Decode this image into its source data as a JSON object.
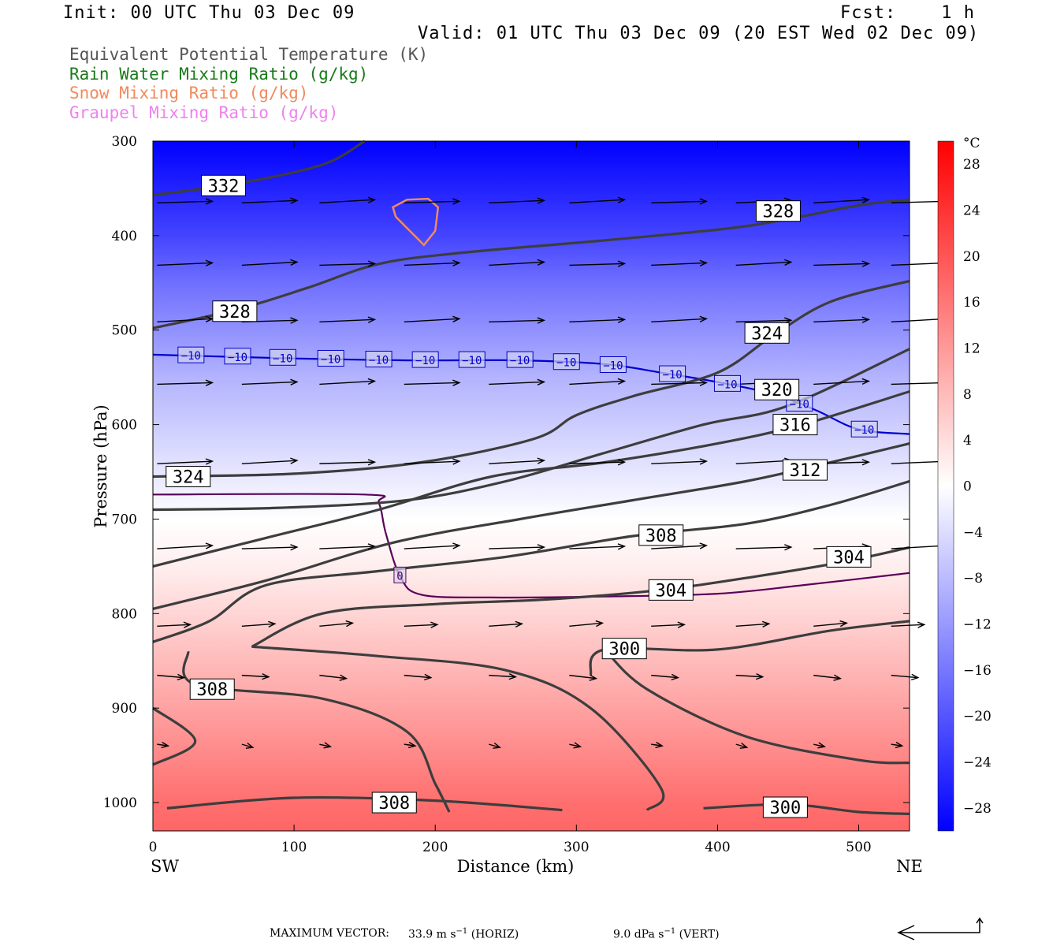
{
  "header": {
    "init": "Init: 00 UTC Thu 03 Dec 09",
    "fcst": "Fcst:    1 h",
    "valid": "Valid: 01 UTC Thu 03 Dec 09 (20 EST Wed 02 Dec 09)"
  },
  "legend": [
    {
      "label": "Equivalent Potential Temperature (K)",
      "color": "#555555"
    },
    {
      "label": "Rain Water Mixing Ratio (g/kg)",
      "color": "#1a7a1a"
    },
    {
      "label": "Snow Mixing Ratio (g/kg)",
      "color": "#f08a5d"
    },
    {
      "label": "Graupel Mixing Ratio (g/kg)",
      "color": "#ee82ee"
    }
  ],
  "colorbar": {
    "unit": "°C",
    "tick_labels": [
      "28",
      "24",
      "20",
      "16",
      "12",
      "8",
      "4",
      "0",
      "−4",
      "−8",
      "−12",
      "−16",
      "−20",
      "−24",
      "−28"
    ]
  },
  "footer": {
    "max_vector_label": "MAXIMUM VECTOR:",
    "horiz_value": "33.9 m s",
    "horiz_unit": "(HORIZ)",
    "vert_value": "9.0 dPa s",
    "vert_unit": "(VERT)",
    "exponent": "−1"
  },
  "chart_data": {
    "type": "contour",
    "title": "",
    "xlabel": "Distance (km)",
    "ylabel": "Pressure (hPa)",
    "xlim": [
      0,
      536
    ],
    "ylim": [
      1030,
      300
    ],
    "x_ticks": [
      0,
      100,
      200,
      300,
      400,
      500
    ],
    "y_ticks": [
      300,
      400,
      500,
      600,
      700,
      800,
      900,
      1000
    ],
    "x_end_labels": {
      "left": "SW",
      "right": "NE"
    },
    "shading_field": "Temperature (°C)",
    "shading_levels": [
      {
        "p": 300,
        "t": -30
      },
      {
        "p": 350,
        "t": -26
      },
      {
        "p": 400,
        "t": -22
      },
      {
        "p": 450,
        "t": -17
      },
      {
        "p": 500,
        "t": -13
      },
      {
        "p": 550,
        "t": -9
      },
      {
        "p": 600,
        "t": -6
      },
      {
        "p": 650,
        "t": -3
      },
      {
        "p": 700,
        "t": 0
      },
      {
        "p": 750,
        "t": 2
      },
      {
        "p": 800,
        "t": 5
      },
      {
        "p": 850,
        "t": 8
      },
      {
        "p": 900,
        "t": 11
      },
      {
        "p": 950,
        "t": 14
      },
      {
        "p": 1000,
        "t": 17
      },
      {
        "p": 1030,
        "t": 18
      }
    ],
    "theta_e_contours": [
      {
        "value": 332,
        "points": [
          [
            0,
            357
          ],
          [
            60,
            345
          ],
          [
            120,
            325
          ],
          [
            150,
            300
          ]
        ]
      },
      {
        "value": 328,
        "points": [
          [
            0,
            498
          ],
          [
            60,
            478
          ],
          [
            110,
            455
          ],
          [
            160,
            430
          ],
          [
            220,
            418
          ],
          [
            320,
            405
          ],
          [
            420,
            390
          ],
          [
            500,
            368
          ],
          [
            536,
            362
          ]
        ]
      },
      {
        "value": 324,
        "points": [
          [
            0,
            655
          ],
          [
            100,
            652
          ],
          [
            190,
            640
          ],
          [
            270,
            615
          ],
          [
            300,
            590
          ],
          [
            340,
            570
          ],
          [
            400,
            545
          ],
          [
            440,
            505
          ],
          [
            480,
            470
          ],
          [
            536,
            448
          ]
        ]
      },
      {
        "value": 320,
        "points": [
          [
            0,
            690
          ],
          [
            90,
            688
          ],
          [
            180,
            680
          ],
          [
            250,
            660
          ],
          [
            320,
            630
          ],
          [
            390,
            600
          ],
          [
            450,
            580
          ],
          [
            536,
            520
          ]
        ]
      },
      {
        "value": 316,
        "points": [
          [
            0,
            750
          ],
          [
            80,
            720
          ],
          [
            160,
            690
          ],
          [
            240,
            655
          ],
          [
            320,
            640
          ],
          [
            400,
            620
          ],
          [
            460,
            600
          ],
          [
            536,
            565
          ]
        ]
      },
      {
        "value": 312,
        "points": [
          [
            0,
            795
          ],
          [
            80,
            765
          ],
          [
            170,
            725
          ],
          [
            260,
            700
          ],
          [
            340,
            680
          ],
          [
            420,
            660
          ],
          [
            480,
            640
          ],
          [
            536,
            620
          ]
        ]
      },
      {
        "value": 308,
        "points": [
          [
            0,
            830
          ],
          [
            40,
            808
          ],
          [
            80,
            770
          ],
          [
            160,
            755
          ],
          [
            250,
            740
          ],
          [
            340,
            718
          ],
          [
            420,
            705
          ],
          [
            480,
            685
          ],
          [
            536,
            660
          ]
        ]
      },
      {
        "value": 304,
        "points": [
          [
            70,
            835
          ],
          [
            120,
            800
          ],
          [
            200,
            790
          ],
          [
            280,
            785
          ],
          [
            360,
            775
          ],
          [
            430,
            760
          ],
          [
            490,
            745
          ],
          [
            536,
            730
          ]
        ]
      },
      {
        "value": 300,
        "points": [
          [
            310,
            865
          ],
          [
            320,
            838
          ],
          [
            400,
            838
          ],
          [
            480,
            818
          ],
          [
            536,
            808
          ]
        ]
      },
      {
        "value": 300,
        "points": [
          [
            320,
            838
          ],
          [
            350,
            880
          ],
          [
            420,
            930
          ],
          [
            500,
            955
          ],
          [
            536,
            958
          ]
        ]
      },
      {
        "value": 308,
        "points": [
          [
            25,
            840
          ],
          [
            30,
            875
          ],
          [
            120,
            890
          ],
          [
            180,
            925
          ],
          [
            200,
            980
          ],
          [
            210,
            1010
          ]
        ]
      },
      {
        "value": 304,
        "points": [
          [
            70,
            835
          ],
          [
            160,
            845
          ],
          [
            250,
            860
          ],
          [
            310,
            900
          ],
          [
            360,
            985
          ],
          [
            350,
            1008
          ]
        ]
      },
      {
        "value": 308,
        "points": [
          [
            0,
            900
          ],
          [
            30,
            935
          ],
          [
            0,
            960
          ]
        ]
      },
      {
        "value": 308,
        "points": [
          [
            10,
            1006
          ],
          [
            100,
            995
          ],
          [
            200,
            998
          ],
          [
            290,
            1008
          ]
        ]
      },
      {
        "value": 300,
        "points": [
          [
            390,
            1006
          ],
          [
            450,
            1002
          ],
          [
            500,
            1010
          ],
          [
            536,
            1012
          ]
        ]
      }
    ],
    "theta_e_labels": [
      {
        "text": "332",
        "x": 50,
        "p": 347
      },
      {
        "text": "328",
        "x": 443,
        "p": 374
      },
      {
        "text": "328",
        "x": 58,
        "p": 480
      },
      {
        "text": "324",
        "x": 435,
        "p": 503
      },
      {
        "text": "320",
        "x": 442,
        "p": 563
      },
      {
        "text": "316",
        "x": 455,
        "p": 600
      },
      {
        "text": "312",
        "x": 462,
        "p": 648
      },
      {
        "text": "324",
        "x": 25,
        "p": 655
      },
      {
        "text": "308",
        "x": 360,
        "p": 717
      },
      {
        "text": "304",
        "x": 493,
        "p": 740
      },
      {
        "text": "304",
        "x": 367,
        "p": 775
      },
      {
        "text": "300",
        "x": 334,
        "p": 837
      },
      {
        "text": "308",
        "x": 42,
        "p": 880
      },
      {
        "text": "308",
        "x": 171,
        "p": 1000
      },
      {
        "text": "300",
        "x": 448,
        "p": 1005
      }
    ],
    "temperature_contours": [
      {
        "value": -10,
        "color": "#0000cc",
        "points": [
          [
            0,
            526
          ],
          [
            100,
            530
          ],
          [
            180,
            532
          ],
          [
            260,
            532
          ],
          [
            320,
            536
          ],
          [
            360,
            545
          ],
          [
            400,
            555
          ],
          [
            440,
            568
          ],
          [
            470,
            585
          ],
          [
            500,
            605
          ],
          [
            536,
            610
          ]
        ],
        "label_x": [
          27,
          60,
          92,
          126,
          160,
          193,
          226,
          260,
          293,
          326,
          368,
          407,
          458,
          504
        ]
      },
      {
        "value": 0,
        "color": "#5a005a",
        "points": [
          [
            0,
            674
          ],
          [
            150,
            674
          ],
          [
            160,
            683
          ],
          [
            165,
            715
          ],
          [
            175,
            760
          ],
          [
            190,
            780
          ],
          [
            240,
            783
          ],
          [
            320,
            782
          ],
          [
            400,
            779
          ],
          [
            460,
            770
          ],
          [
            536,
            757
          ]
        ],
        "label_x": [
          175
        ]
      }
    ],
    "snow_contours": [
      {
        "value": null,
        "points": [
          [
            170,
            370
          ],
          [
            180,
            362
          ],
          [
            195,
            361
          ],
          [
            202,
            370
          ],
          [
            200,
            395
          ],
          [
            192,
            410
          ],
          [
            182,
            395
          ],
          [
            172,
            380
          ]
        ]
      }
    ],
    "vector_rows_p": [
      362,
      428,
      488,
      554,
      638,
      728,
      810,
      862,
      935
    ]
  }
}
